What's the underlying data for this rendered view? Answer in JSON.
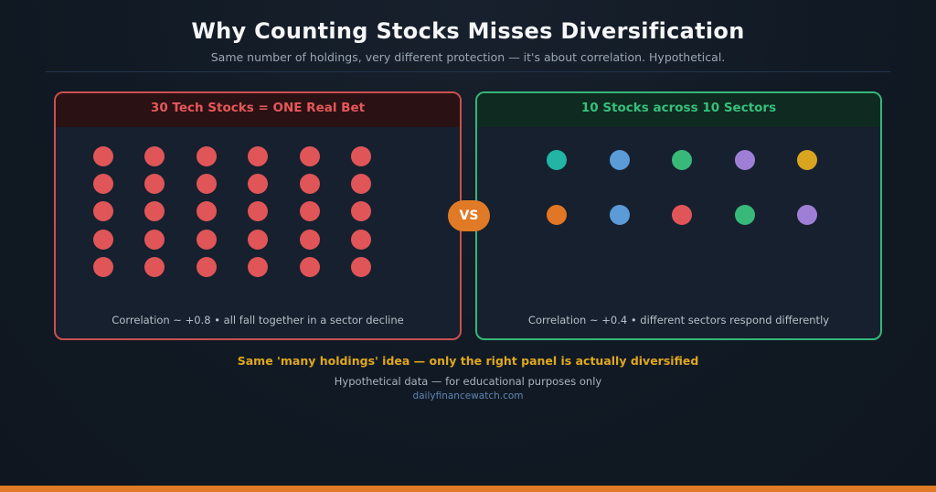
{
  "title": "Why Counting Stocks Misses Diversification",
  "subtitle": "Same number of holdings, very different protection — it's about correlation. Hypothetical.",
  "left_panel": {
    "header": "30 Tech Stocks  =  ONE Real Bet",
    "caption": "Correlation ~ +0.8  •  all fall together in a sector decline",
    "dot_count": 30,
    "dot_color": "#e05558",
    "border_color": "#c9504f"
  },
  "right_panel": {
    "header": "10 Stocks across 10 Sectors",
    "caption": "Correlation ~ +0.4  •  different sectors respond differently",
    "dot_colors": [
      "#22b5a3",
      "#5a9bd8",
      "#38b97a",
      "#9f7fd6",
      "#d9a521",
      "#e27624",
      "#5a9bd8",
      "#e05558",
      "#38b97a",
      "#9f7fd6"
    ],
    "border_color": "#35b679"
  },
  "vs_label": "VS",
  "takeaway": "Same 'many holdings' idea — only the right panel is actually diversified",
  "disclaimer": "Hypothetical data — for educational purposes only",
  "source": "dailyfinancewatch.com",
  "accent_color": "#e07a26"
}
